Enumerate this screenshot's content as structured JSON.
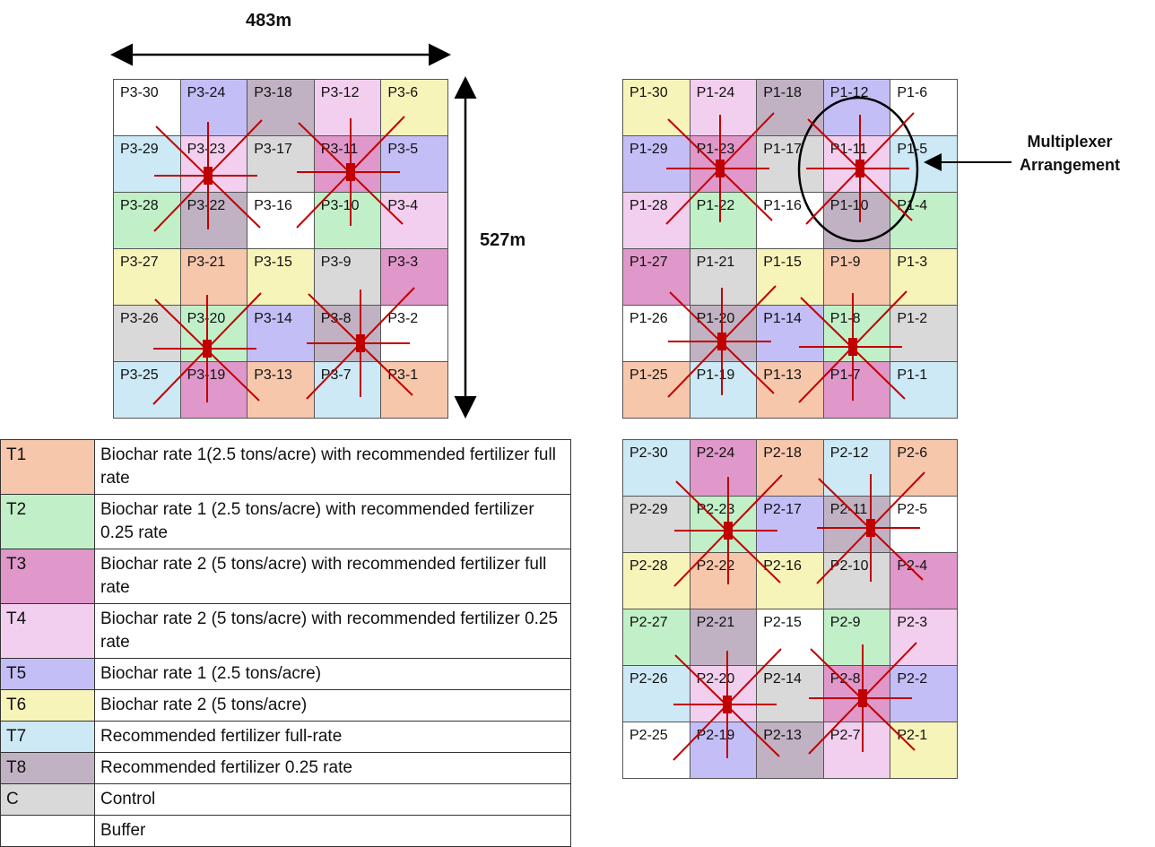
{
  "dimensions": {
    "width_label": "483m",
    "height_label": "527m"
  },
  "multiplexer_label": "Multiplexer Arrangement",
  "colors": {
    "T1": "#f7c7ac",
    "T2": "#c1f0c8",
    "T3": "#e097c9",
    "T4": "#f2cfee",
    "T5": "#c4bef7",
    "T6": "#f7f4b9",
    "T7": "#cce9f5",
    "T8": "#c1b2c3",
    "C": "#d9d9d9",
    "B": "#ffffff",
    "marker": "#c00000",
    "ellipse": "#000000"
  },
  "plots": {
    "P3": {
      "rows": [
        [
          {
            "id": "P3-30",
            "t": "B"
          },
          {
            "id": "P3-24",
            "t": "T5"
          },
          {
            "id": "P3-18",
            "t": "T8"
          },
          {
            "id": "P3-12",
            "t": "T4"
          },
          {
            "id": "P3-6",
            "t": "T6"
          }
        ],
        [
          {
            "id": "P3-29",
            "t": "T7"
          },
          {
            "id": "P3-23",
            "t": "T4"
          },
          {
            "id": "P3-17",
            "t": "C"
          },
          {
            "id": "P3-11",
            "t": "T3"
          },
          {
            "id": "P3-5",
            "t": "T5"
          }
        ],
        [
          {
            "id": "P3-28",
            "t": "T2"
          },
          {
            "id": "P3-22",
            "t": "T8"
          },
          {
            "id": "P3-16",
            "t": "B"
          },
          {
            "id": "P3-10",
            "t": "T2"
          },
          {
            "id": "P3-4",
            "t": "T4"
          }
        ],
        [
          {
            "id": "P3-27",
            "t": "T6"
          },
          {
            "id": "P3-21",
            "t": "T1"
          },
          {
            "id": "P3-15",
            "t": "T6"
          },
          {
            "id": "P3-9",
            "t": "C"
          },
          {
            "id": "P3-3",
            "t": "T3"
          }
        ],
        [
          {
            "id": "P3-26",
            "t": "C"
          },
          {
            "id": "P3-20",
            "t": "T2"
          },
          {
            "id": "P3-14",
            "t": "T5"
          },
          {
            "id": "P3-8",
            "t": "T8"
          },
          {
            "id": "P3-2",
            "t": "B"
          }
        ],
        [
          {
            "id": "P3-25",
            "t": "T7"
          },
          {
            "id": "P3-19",
            "t": "T3"
          },
          {
            "id": "P3-13",
            "t": "T1"
          },
          {
            "id": "P3-7",
            "t": "T7"
          },
          {
            "id": "P3-1",
            "t": "T1"
          }
        ]
      ]
    },
    "P1": {
      "rows": [
        [
          {
            "id": "P1-30",
            "t": "T6"
          },
          {
            "id": "P1-24",
            "t": "T4"
          },
          {
            "id": "P1-18",
            "t": "T8"
          },
          {
            "id": "P1-12",
            "t": "T5"
          },
          {
            "id": "P1-6",
            "t": "B"
          }
        ],
        [
          {
            "id": "P1-29",
            "t": "T5"
          },
          {
            "id": "P1-23",
            "t": "T3"
          },
          {
            "id": "P1-17",
            "t": "C"
          },
          {
            "id": "P1-11",
            "t": "T4"
          },
          {
            "id": "P1-5",
            "t": "T7"
          }
        ],
        [
          {
            "id": "P1-28",
            "t": "T4"
          },
          {
            "id": "P1-22",
            "t": "T2"
          },
          {
            "id": "P1-16",
            "t": "B"
          },
          {
            "id": "P1-10",
            "t": "T8"
          },
          {
            "id": "P1-4",
            "t": "T2"
          }
        ],
        [
          {
            "id": "P1-27",
            "t": "T3"
          },
          {
            "id": "P1-21",
            "t": "C"
          },
          {
            "id": "P1-15",
            "t": "T6"
          },
          {
            "id": "P1-9",
            "t": "T1"
          },
          {
            "id": "P1-3",
            "t": "T6"
          }
        ],
        [
          {
            "id": "P1-26",
            "t": "B"
          },
          {
            "id": "P1-20",
            "t": "T8"
          },
          {
            "id": "P1-14",
            "t": "T5"
          },
          {
            "id": "P1-8",
            "t": "T2"
          },
          {
            "id": "P1-2",
            "t": "C"
          }
        ],
        [
          {
            "id": "P1-25",
            "t": "T1"
          },
          {
            "id": "P1-19",
            "t": "T7"
          },
          {
            "id": "P1-13",
            "t": "T1"
          },
          {
            "id": "P1-7",
            "t": "T3"
          },
          {
            "id": "P1-1",
            "t": "T7"
          }
        ]
      ]
    },
    "P2": {
      "rows": [
        [
          {
            "id": "P2-30",
            "t": "T7"
          },
          {
            "id": "P2-24",
            "t": "T3"
          },
          {
            "id": "P2-18",
            "t": "T1"
          },
          {
            "id": "P2-12",
            "t": "T7"
          },
          {
            "id": "P2-6",
            "t": "T1"
          }
        ],
        [
          {
            "id": "P2-29",
            "t": "C"
          },
          {
            "id": "P2-23",
            "t": "T2"
          },
          {
            "id": "P2-17",
            "t": "T5"
          },
          {
            "id": "P2-11",
            "t": "T8"
          },
          {
            "id": "P2-5",
            "t": "B"
          }
        ],
        [
          {
            "id": "P2-28",
            "t": "T6"
          },
          {
            "id": "P2-22",
            "t": "T1"
          },
          {
            "id": "P2-16",
            "t": "T6"
          },
          {
            "id": "P2-10",
            "t": "C"
          },
          {
            "id": "P2-4",
            "t": "T3"
          }
        ],
        [
          {
            "id": "P2-27",
            "t": "T2"
          },
          {
            "id": "P2-21",
            "t": "T8"
          },
          {
            "id": "P2-15",
            "t": "B"
          },
          {
            "id": "P2-9",
            "t": "T2"
          },
          {
            "id": "P2-3",
            "t": "T4"
          }
        ],
        [
          {
            "id": "P2-26",
            "t": "T7"
          },
          {
            "id": "P2-20",
            "t": "T4"
          },
          {
            "id": "P2-14",
            "t": "C"
          },
          {
            "id": "P2-8",
            "t": "T3"
          },
          {
            "id": "P2-2",
            "t": "T5"
          }
        ],
        [
          {
            "id": "P2-25",
            "t": "B"
          },
          {
            "id": "P2-19",
            "t": "T5"
          },
          {
            "id": "P2-13",
            "t": "T8"
          },
          {
            "id": "P2-7",
            "t": "T4"
          },
          {
            "id": "P2-1",
            "t": "T6"
          }
        ]
      ]
    }
  },
  "legend": [
    {
      "code": "T1",
      "text": "Biochar rate 1(2.5 tons/acre) with recommended fertilizer full rate"
    },
    {
      "code": "T2",
      "text": "Biochar rate 1 (2.5 tons/acre)  with recommended fertilizer 0.25 rate"
    },
    {
      "code": "T3",
      "text": "Biochar rate 2 (5 tons/acre) with recommended fertilizer full rate"
    },
    {
      "code": "T4",
      "text": "Biochar rate 2 (5 tons/acre) with recommended fertilizer 0.25 rate"
    },
    {
      "code": "T5",
      "text": "Biochar rate 1 (2.5 tons/acre)"
    },
    {
      "code": "T6",
      "text": "Biochar rate 2 (5 tons/acre)"
    },
    {
      "code": "T7",
      "text": "Recommended fertilizer full-rate"
    },
    {
      "code": "T8",
      "text": "Recommended fertilizer 0.25 rate"
    },
    {
      "code": "C",
      "text": "Control"
    },
    {
      "code": "",
      "text": "Buffer"
    }
  ]
}
